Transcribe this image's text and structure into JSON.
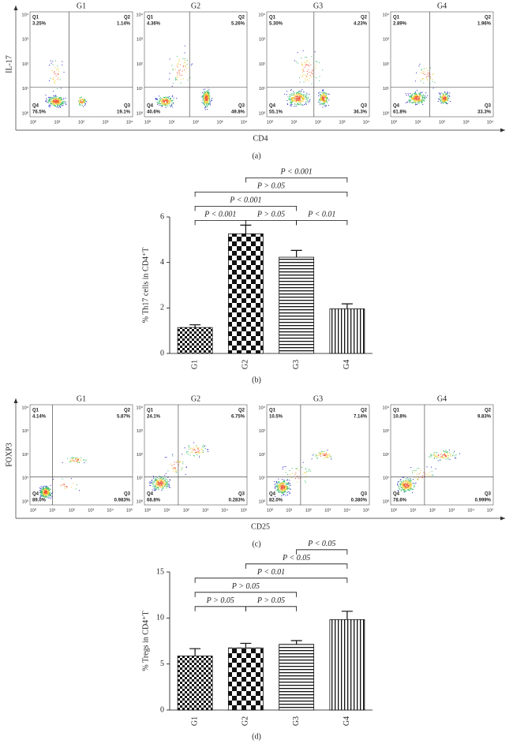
{
  "panel_a": {
    "caption": "(a)",
    "x_label": "CD4",
    "y_label": "IL-17",
    "x_ticks": [
      "10⁰",
      "10¹",
      "10²",
      "10³",
      "10⁴"
    ],
    "y_ticks": [
      "10⁰",
      "10¹",
      "10²",
      "10³",
      "10⁴"
    ],
    "plots": [
      {
        "title": "G1",
        "quadrants": [
          {
            "name": "Q1",
            "value": "3.25%"
          },
          {
            "name": "Q2",
            "value": "1.14%"
          },
          {
            "name": "Q4",
            "value": "76.5%"
          },
          {
            "name": "Q3",
            "value": "19.1%"
          }
        ]
      },
      {
        "title": "G2",
        "quadrants": [
          {
            "name": "Q1",
            "value": "4.36%"
          },
          {
            "name": "Q2",
            "value": "5.26%"
          },
          {
            "name": "Q4",
            "value": "40.6%"
          },
          {
            "name": "Q3",
            "value": "49.8%"
          }
        ]
      },
      {
        "title": "G3",
        "quadrants": [
          {
            "name": "Q1",
            "value": "5.30%"
          },
          {
            "name": "Q2",
            "value": "4.23%"
          },
          {
            "name": "Q4",
            "value": "55.1%"
          },
          {
            "name": "Q3",
            "value": "36.3%"
          }
        ]
      },
      {
        "title": "G4",
        "quadrants": [
          {
            "name": "Q1",
            "value": "2.89%"
          },
          {
            "name": "Q2",
            "value": "1.96%"
          },
          {
            "name": "Q4",
            "value": "61.8%"
          },
          {
            "name": "Q3",
            "value": "33.3%"
          }
        ]
      }
    ]
  },
  "panel_b": {
    "caption": "(b)",
    "chart_data": {
      "type": "bar",
      "y_label": "% Th17 cells in CD4⁺T",
      "categories": [
        "G1",
        "G2",
        "G3",
        "G4"
      ],
      "values": [
        1.14,
        5.26,
        4.23,
        1.96
      ],
      "errors": [
        0.12,
        0.38,
        0.3,
        0.22
      ],
      "patterns": [
        "fine-check",
        "check",
        "hlines",
        "vlines"
      ],
      "ylim": [
        0,
        6
      ],
      "yticks": [
        0,
        2,
        4,
        6
      ],
      "brackets": [
        {
          "label": "P < 0.001",
          "between": [
            "G1",
            "G2"
          ]
        },
        {
          "label": "P > 0.05",
          "between": [
            "G2",
            "G3"
          ]
        },
        {
          "label": "P < 0.01",
          "between": [
            "G3",
            "G4"
          ]
        },
        {
          "label": "P < 0.001",
          "between": [
            "G1",
            "G3"
          ]
        },
        {
          "label": "P > 0.05",
          "between": [
            "G1",
            "G4"
          ]
        },
        {
          "label": "P < 0.001",
          "between": [
            "G2",
            "G4"
          ]
        }
      ]
    }
  },
  "panel_c": {
    "caption": "(c)",
    "x_label": "CD25",
    "y_label": "FOXP3",
    "x_ticks": [
      "10⁰",
      "10¹",
      "10²",
      "10³",
      "10⁴",
      "10⁵"
    ],
    "y_ticks": [
      "10⁰",
      "10¹",
      "10²",
      "10³",
      "10⁴"
    ],
    "plots": [
      {
        "title": "G1",
        "quadrants": [
          {
            "name": "Q1",
            "value": "4.14%"
          },
          {
            "name": "Q2",
            "value": "5.87%"
          },
          {
            "name": "Q4",
            "value": "89.0%"
          },
          {
            "name": "Q3",
            "value": "0.983%"
          }
        ]
      },
      {
        "title": "G2",
        "quadrants": [
          {
            "name": "Q1",
            "value": "24.1%"
          },
          {
            "name": "Q2",
            "value": "6.75%"
          },
          {
            "name": "Q4",
            "value": "68.8%"
          },
          {
            "name": "Q3",
            "value": "0.283%"
          }
        ]
      },
      {
        "title": "G3",
        "quadrants": [
          {
            "name": "Q1",
            "value": "10.5%"
          },
          {
            "name": "Q2",
            "value": "7.14%"
          },
          {
            "name": "Q4",
            "value": "82.0%"
          },
          {
            "name": "Q3",
            "value": "0.380%"
          }
        ]
      },
      {
        "title": "G4",
        "quadrants": [
          {
            "name": "Q1",
            "value": "10.8%"
          },
          {
            "name": "Q2",
            "value": "9.83%"
          },
          {
            "name": "Q4",
            "value": "78.6%"
          },
          {
            "name": "Q3",
            "value": "0.999%"
          }
        ]
      }
    ]
  },
  "panel_d": {
    "caption": "(d)",
    "chart_data": {
      "type": "bar",
      "y_label": "% Tregs in CD4⁺T",
      "categories": [
        "G1",
        "G2",
        "G3",
        "G4"
      ],
      "values": [
        5.87,
        6.75,
        7.14,
        9.83
      ],
      "errors": [
        0.8,
        0.5,
        0.4,
        0.9
      ],
      "patterns": [
        "fine-check",
        "check",
        "hlines",
        "vlines"
      ],
      "ylim": [
        0,
        15
      ],
      "yticks": [
        0,
        5,
        10,
        15
      ],
      "brackets": [
        {
          "label": "P > 0.05",
          "between": [
            "G1",
            "G2"
          ]
        },
        {
          "label": "P > 0.05",
          "between": [
            "G2",
            "G3"
          ]
        },
        {
          "label": "P > 0.05",
          "between": [
            "G1",
            "G3"
          ]
        },
        {
          "label": "P < 0.01",
          "between": [
            "G1",
            "G4"
          ]
        },
        {
          "label": "P < 0.05",
          "between": [
            "G2",
            "G4"
          ]
        },
        {
          "label": "P < 0.05",
          "between": [
            "G3",
            "G4"
          ]
        }
      ]
    }
  }
}
